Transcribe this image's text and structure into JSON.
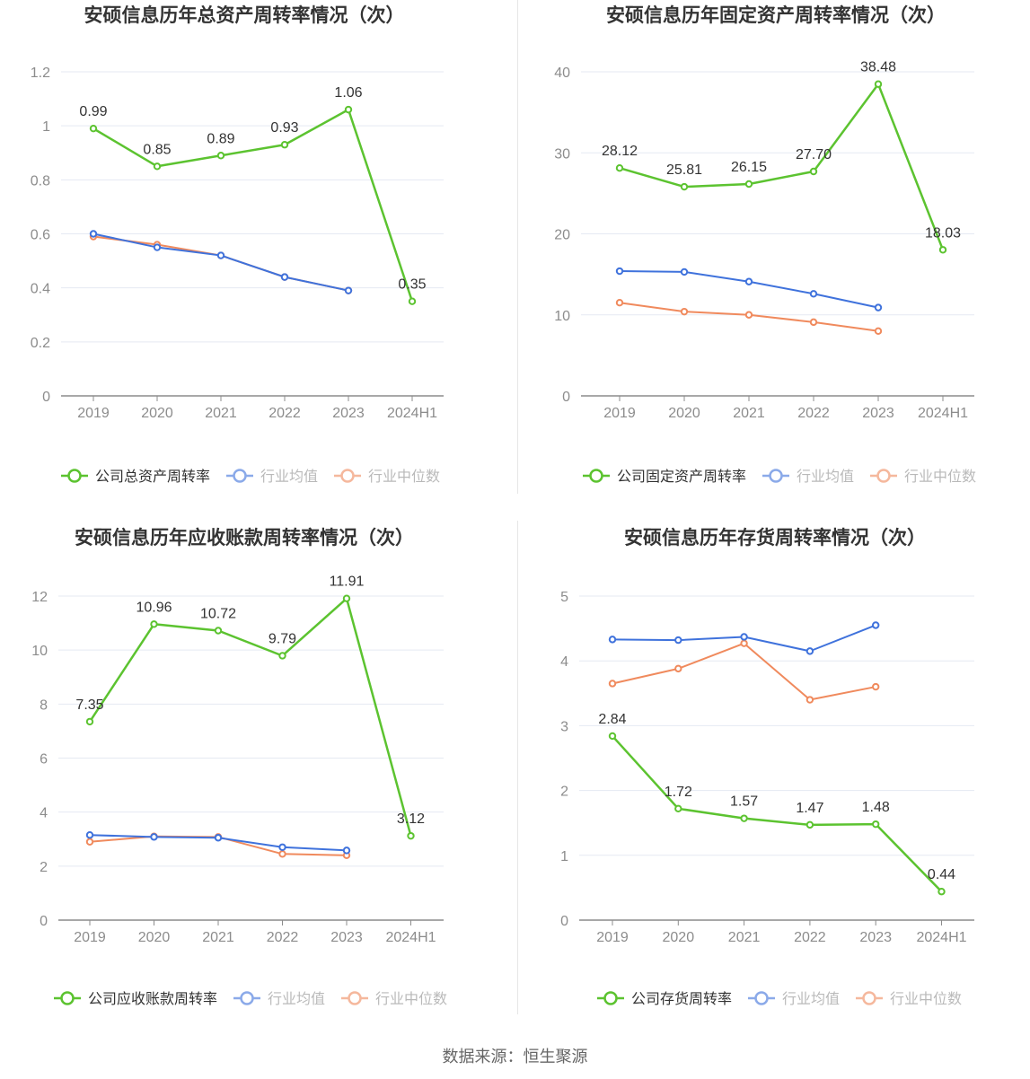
{
  "source_text": "数据来源：恒生聚源",
  "colors": {
    "company": "#5cc330",
    "industry_avg": "#3f72dc",
    "industry_median": "#f08a5d",
    "axis": "#8c8c8c",
    "grid": "#e5e9f2",
    "label": "#333333",
    "tick": "#8c8c8c"
  },
  "chart_data": [
    {
      "type": "line",
      "title": "安硕信息历年总资产周转率情况（次）",
      "categories": [
        "2019",
        "2020",
        "2021",
        "2022",
        "2023",
        "2024H1"
      ],
      "ylim": [
        0,
        1.2
      ],
      "yticks": [
        0,
        0.2,
        0.4,
        0.6,
        0.8,
        1,
        1.2
      ],
      "ytick_labels": [
        "0",
        "0.2",
        "0.4",
        "0.6",
        "0.8",
        "1",
        "1.2"
      ],
      "series": [
        {
          "name": "公司总资产周转率",
          "key": "company",
          "values": [
            0.99,
            0.85,
            0.89,
            0.93,
            1.06,
            0.35
          ],
          "labels": [
            "0.99",
            "0.85",
            "0.89",
            "0.93",
            "1.06",
            "0.35"
          ]
        },
        {
          "name": "行业均值",
          "key": "industry_avg",
          "values": [
            0.6,
            0.55,
            0.52,
            0.44,
            0.39,
            null
          ]
        },
        {
          "name": "行业中位数",
          "key": "industry_median",
          "values": [
            0.59,
            0.56,
            0.52,
            0.44,
            0.39,
            null
          ]
        }
      ],
      "grid": true,
      "legend": "bottom"
    },
    {
      "type": "line",
      "title": "安硕信息历年固定资产周转率情况（次）",
      "categories": [
        "2019",
        "2020",
        "2021",
        "2022",
        "2023",
        "2024H1"
      ],
      "ylim": [
        0,
        40
      ],
      "yticks": [
        0,
        10,
        20,
        30,
        40
      ],
      "ytick_labels": [
        "0",
        "10",
        "20",
        "30",
        "40"
      ],
      "series": [
        {
          "name": "公司固定资产周转率",
          "key": "company",
          "values": [
            28.12,
            25.81,
            26.15,
            27.7,
            38.48,
            18.03
          ],
          "labels": [
            "28.12",
            "25.81",
            "26.15",
            "27.70",
            "38.48",
            "18.03"
          ]
        },
        {
          "name": "行业均值",
          "key": "industry_avg",
          "values": [
            15.4,
            15.3,
            14.1,
            12.6,
            10.9,
            null
          ]
        },
        {
          "name": "行业中位数",
          "key": "industry_median",
          "values": [
            11.5,
            10.4,
            10.0,
            9.1,
            8.0,
            null
          ]
        }
      ],
      "grid": true,
      "legend": "bottom"
    },
    {
      "type": "line",
      "title": "安硕信息历年应收账款周转率情况（次）",
      "categories": [
        "2019",
        "2020",
        "2021",
        "2022",
        "2023",
        "2024H1"
      ],
      "ylim": [
        0,
        12
      ],
      "yticks": [
        0,
        2,
        4,
        6,
        8,
        10,
        12
      ],
      "ytick_labels": [
        "0",
        "2",
        "4",
        "6",
        "8",
        "10",
        "12"
      ],
      "series": [
        {
          "name": "公司应收账款周转率",
          "key": "company",
          "values": [
            7.35,
            10.96,
            10.72,
            9.79,
            11.91,
            3.12
          ],
          "labels": [
            "7.35",
            "10.96",
            "10.72",
            "9.79",
            "11.91",
            "3.12"
          ]
        },
        {
          "name": "行业均值",
          "key": "industry_avg",
          "values": [
            3.15,
            3.08,
            3.05,
            2.7,
            2.58,
            null
          ]
        },
        {
          "name": "行业中位数",
          "key": "industry_median",
          "values": [
            2.9,
            3.1,
            3.08,
            2.45,
            2.4,
            null
          ]
        }
      ],
      "grid": true,
      "legend": "bottom"
    },
    {
      "type": "line",
      "title": "安硕信息历年存货周转率情况（次）",
      "categories": [
        "2019",
        "2020",
        "2021",
        "2022",
        "2023",
        "2024H1"
      ],
      "ylim": [
        0,
        5
      ],
      "yticks": [
        0,
        1,
        2,
        3,
        4,
        5
      ],
      "ytick_labels": [
        "0",
        "1",
        "2",
        "3",
        "4",
        "5"
      ],
      "series": [
        {
          "name": "公司存货周转率",
          "key": "company",
          "values": [
            2.84,
            1.72,
            1.57,
            1.47,
            1.48,
            0.44
          ],
          "labels": [
            "2.84",
            "1.72",
            "1.57",
            "1.47",
            "1.48",
            "0.44"
          ]
        },
        {
          "name": "行业均值",
          "key": "industry_avg",
          "values": [
            4.33,
            4.32,
            4.37,
            4.15,
            4.55,
            null
          ]
        },
        {
          "name": "行业中位数",
          "key": "industry_median",
          "values": [
            3.65,
            3.88,
            4.27,
            3.4,
            3.6,
            null
          ]
        }
      ],
      "grid": true,
      "legend": "bottom"
    }
  ]
}
